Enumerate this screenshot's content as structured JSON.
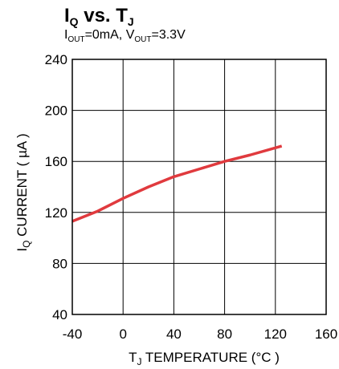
{
  "chart_data": {
    "type": "line",
    "title": {
      "base_1": "I",
      "sub_1": "Q",
      "middle": " vs. T",
      "sub_2": "J"
    },
    "subtitle": {
      "base_1": "I",
      "sub_1": "OUT",
      "middle": "=0mA, V",
      "sub_2": "OUT",
      "tail": "=3.3V"
    },
    "xlabel": {
      "base": "T",
      "sub": "J",
      "rest": " TEMPERATURE (°C )"
    },
    "ylabel": {
      "base": "I",
      "sub": "Q",
      "rest": " CURRENT ( µA )"
    },
    "xlim": [
      -40,
      160
    ],
    "ylim": [
      40,
      240
    ],
    "x_ticks": [
      "-40",
      "0",
      "40",
      "80",
      "120",
      "160"
    ],
    "y_ticks": [
      "40",
      "80",
      "120",
      "160",
      "200",
      "240"
    ],
    "grid": true,
    "series": [
      {
        "color": "#e03a3e",
        "x": [
          -40,
          -20,
          0,
          20,
          40,
          60,
          80,
          100,
          125
        ],
        "y": [
          113,
          121,
          131,
          140,
          148,
          154,
          160,
          165,
          172
        ]
      }
    ]
  }
}
